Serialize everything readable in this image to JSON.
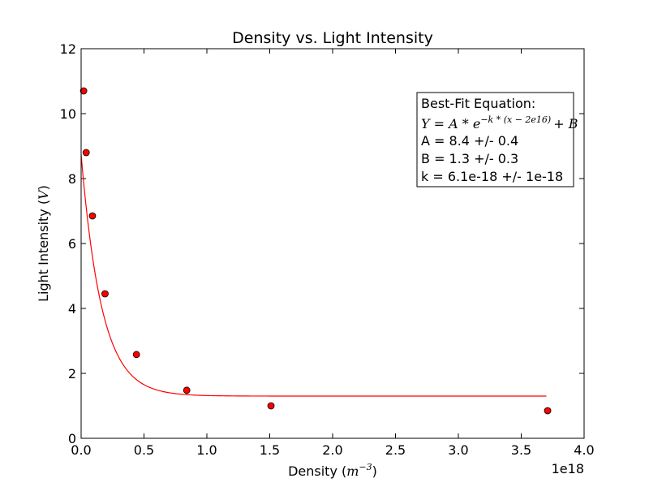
{
  "chart_data": {
    "type": "scatter",
    "title": "Density vs. Light Intensity",
    "xlabel_text": "Density (",
    "xlabel_math": "m",
    "xlabel_sup": "−3",
    "xlabel_close": ")",
    "ylabel_text": "Light Intensity (",
    "ylabel_math": "V",
    "ylabel_close": ")",
    "x_offset_label": "1e18",
    "xlim": [
      0,
      4e+18
    ],
    "ylim": [
      0,
      12
    ],
    "xticks": [
      0.0,
      5e+17,
      1e+18,
      1.5e+18,
      2e+18,
      2.5e+18,
      3e+18,
      3.5e+18,
      4e+18
    ],
    "xtick_labels": [
      "0.0",
      "0.5",
      "1.0",
      "1.5",
      "2.0",
      "2.5",
      "3.0",
      "3.5",
      "4.0"
    ],
    "yticks": [
      0,
      2,
      4,
      6,
      8,
      10,
      12
    ],
    "ytick_labels": [
      "0",
      "2",
      "4",
      "6",
      "8",
      "10",
      "12"
    ],
    "grid": false,
    "series": [
      {
        "kind": "scatter",
        "color": "#ff0000",
        "x": [
          2e+16,
          4e+16,
          9e+16,
          1.9e+17,
          4.4e+17,
          8.4e+17,
          1.51e+18,
          3.71e+18
        ],
        "y": [
          10.7,
          8.8,
          6.85,
          4.45,
          2.58,
          1.48,
          1.0,
          0.85
        ]
      },
      {
        "kind": "fit-line",
        "color": "#ff0000",
        "equation": {
          "A": 8.4,
          "B": 1.3,
          "k": 6.1e-18,
          "x0": -2e+16
        },
        "x_range": [
          0,
          3.7e+18
        ]
      }
    ],
    "annotation": {
      "heading": "Best-Fit Equation:",
      "equation_main": "Y = A * e",
      "equation_exp": "−k * (x − 2e16)",
      "equation_tail": "+ B",
      "line_a": "A = 8.4 +/- 0.4",
      "line_b": "B = 1.3 +/- 0.3",
      "line_k": "k = 6.1e-18 +/- 1e-18"
    }
  }
}
